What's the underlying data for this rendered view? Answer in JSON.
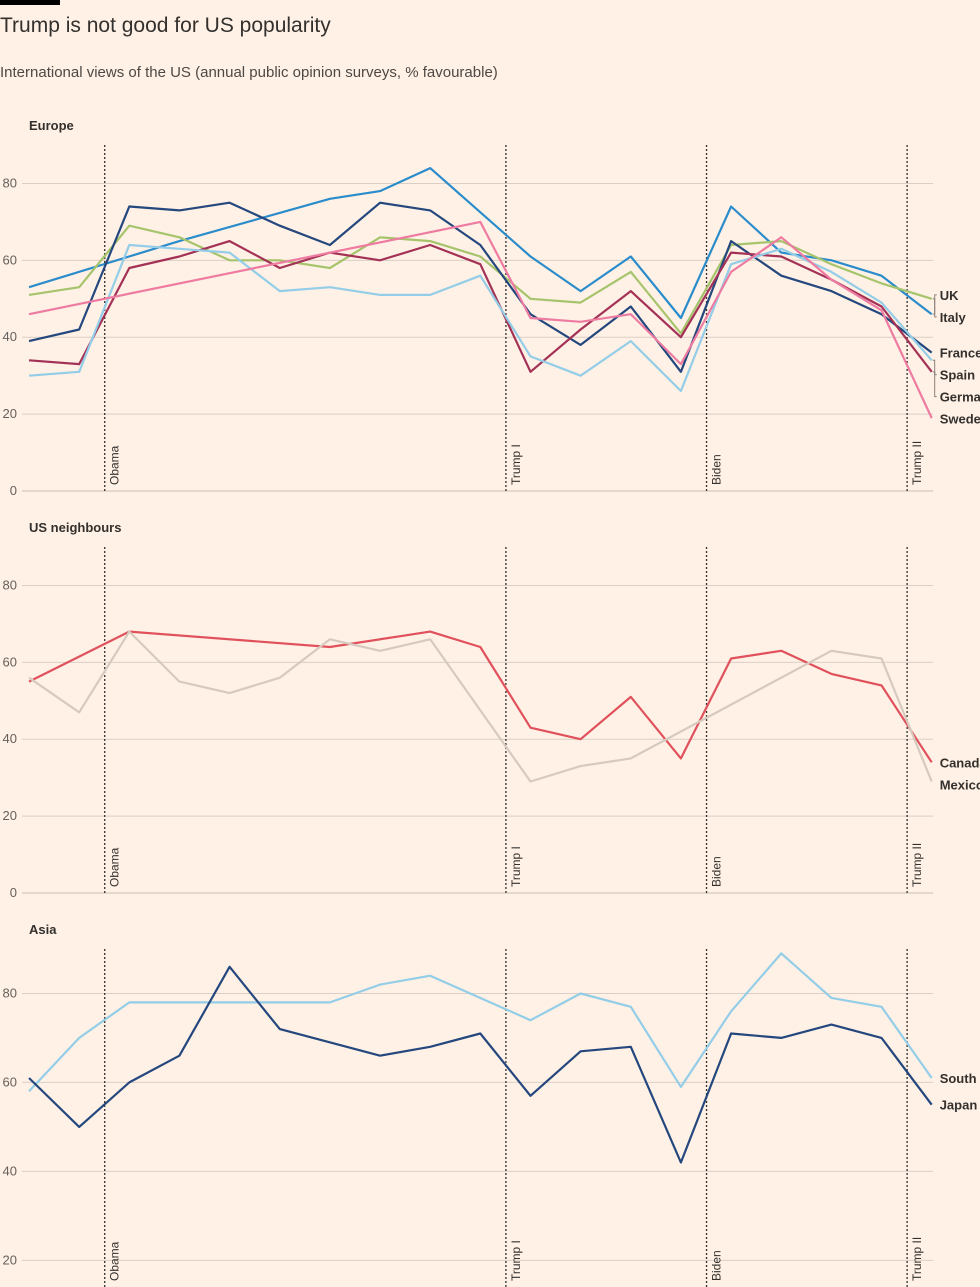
{
  "title": "Trump is not good for US popularity",
  "subtitle": "International views of the US (annual public opinion surveys, % favourable)",
  "colors": {
    "background": "#fff1e5",
    "uk": "#2b8ccc",
    "italy": "#a6c46c",
    "france": "#24477e",
    "germany": "#a33256",
    "spain": "#93cde8",
    "sweden": "#ee7ba1",
    "canada": "#e0515c",
    "mexico": "#d6cac0",
    "south_korea": "#93cde8",
    "japan": "#24477e"
  },
  "chart_data": [
    {
      "type": "line",
      "title": "Europe",
      "ylim": [
        0,
        90
      ],
      "yticks": [
        0,
        20,
        40,
        60,
        80
      ],
      "xlim": [
        0,
        18.3
      ],
      "eras": [
        {
          "label": "Obama",
          "x": 1.5
        },
        {
          "label": "Trump I",
          "x": 9.5
        },
        {
          "label": "Biden",
          "x": 13.5
        },
        {
          "label": "Trump II",
          "x": 17.5
        }
      ],
      "series": [
        {
          "name": "UK",
          "color": "#2b8ccc",
          "label_y": 51,
          "points": [
            [
              0,
              53
            ],
            [
              3,
              65
            ],
            [
              6,
              76
            ],
            [
              7,
              78
            ],
            [
              8,
              84
            ],
            [
              10,
              61
            ],
            [
              11,
              52
            ],
            [
              12,
              61
            ],
            [
              13,
              45
            ],
            [
              14,
              74
            ],
            [
              15,
              62
            ],
            [
              16,
              60
            ],
            [
              17,
              56
            ],
            [
              18,
              46
            ]
          ]
        },
        {
          "name": "Italy",
          "color": "#a6c46c",
          "points": [
            [
              0,
              51
            ],
            [
              1,
              53
            ],
            [
              2,
              69
            ],
            [
              3,
              66
            ],
            [
              4,
              60
            ],
            [
              5,
              60
            ],
            [
              6,
              58
            ],
            [
              7,
              66
            ],
            [
              8,
              65
            ],
            [
              9,
              61
            ],
            [
              10,
              50
            ],
            [
              11,
              49
            ],
            [
              12,
              57
            ],
            [
              13,
              41
            ],
            [
              14,
              64
            ],
            [
              15,
              65
            ],
            [
              16,
              59
            ],
            [
              17,
              54
            ],
            [
              18,
              50
            ]
          ]
        },
        {
          "name": "France",
          "color": "#24477e",
          "points": [
            [
              0,
              39
            ],
            [
              1,
              42
            ],
            [
              2,
              74
            ],
            [
              3,
              73
            ],
            [
              4,
              75
            ],
            [
              5,
              69
            ],
            [
              6,
              64
            ],
            [
              7,
              75
            ],
            [
              8,
              73
            ],
            [
              9,
              64
            ],
            [
              10,
              46
            ],
            [
              11,
              38
            ],
            [
              12,
              48
            ],
            [
              13,
              31
            ],
            [
              14,
              65
            ],
            [
              15,
              56
            ],
            [
              16,
              52
            ],
            [
              17,
              46
            ],
            [
              18,
              36
            ]
          ]
        },
        {
          "name": "Germany",
          "color": "#a33256",
          "points": [
            [
              0,
              34
            ],
            [
              1,
              33
            ],
            [
              2,
              58
            ],
            [
              3,
              61
            ],
            [
              4,
              65
            ],
            [
              5,
              58
            ],
            [
              6,
              62
            ],
            [
              7,
              60
            ],
            [
              8,
              64
            ],
            [
              9,
              59
            ],
            [
              10,
              31
            ],
            [
              11,
              42
            ],
            [
              12,
              52
            ],
            [
              13,
              40
            ],
            [
              14,
              62
            ],
            [
              15,
              61
            ],
            [
              16,
              55
            ],
            [
              17,
              48
            ],
            [
              18,
              31
            ]
          ]
        },
        {
          "name": "Spain",
          "color": "#93cde8",
          "points": [
            [
              0,
              30
            ],
            [
              1,
              31
            ],
            [
              2,
              64
            ],
            [
              3,
              63
            ],
            [
              4,
              62
            ],
            [
              5,
              52
            ],
            [
              6,
              53
            ],
            [
              7,
              51
            ],
            [
              8,
              51
            ],
            [
              9,
              56
            ],
            [
              10,
              35
            ],
            [
              11,
              30
            ],
            [
              12,
              39
            ],
            [
              13,
              26
            ],
            [
              14,
              59
            ],
            [
              15,
              63
            ],
            [
              16,
              57
            ],
            [
              17,
              49
            ],
            [
              18,
              34
            ]
          ]
        },
        {
          "name": "Sweden",
          "color": "#ee7ba1",
          "points": [
            [
              0,
              46
            ],
            [
              9,
              70
            ],
            [
              10,
              45
            ],
            [
              11,
              44
            ],
            [
              12,
              46
            ],
            [
              13,
              33
            ],
            [
              14,
              57
            ],
            [
              15,
              66
            ],
            [
              16,
              55
            ],
            [
              17,
              47
            ],
            [
              18,
              19
            ]
          ]
        }
      ]
    },
    {
      "type": "line",
      "title": "US neighbours",
      "ylim": [
        0,
        90
      ],
      "yticks": [
        0,
        20,
        40,
        60,
        80
      ],
      "xlim": [
        0,
        18.3
      ],
      "eras": [
        {
          "label": "Obama",
          "x": 1.5
        },
        {
          "label": "Trump I",
          "x": 9.5
        },
        {
          "label": "Biden",
          "x": 13.5
        },
        {
          "label": "Trump II",
          "x": 17.5
        }
      ],
      "series": [
        {
          "name": "Canada",
          "color": "#e0515c",
          "points": [
            [
              0,
              55
            ],
            [
              2,
              68
            ],
            [
              6,
              64
            ],
            [
              8,
              68
            ],
            [
              9,
              64
            ],
            [
              10,
              43
            ],
            [
              11,
              40
            ],
            [
              12,
              51
            ],
            [
              13,
              35
            ],
            [
              14,
              61
            ],
            [
              15,
              63
            ],
            [
              16,
              57
            ],
            [
              17,
              54
            ],
            [
              18,
              34
            ]
          ]
        },
        {
          "name": "Mexico",
          "color": "#d6cac0",
          "points": [
            [
              0,
              56
            ],
            [
              1,
              47
            ],
            [
              2,
              68
            ],
            [
              3,
              55
            ],
            [
              4,
              52
            ],
            [
              5,
              56
            ],
            [
              6,
              66
            ],
            [
              7,
              63
            ],
            [
              8,
              66
            ],
            [
              10,
              29
            ],
            [
              11,
              33
            ],
            [
              12,
              35
            ],
            [
              16,
              63
            ],
            [
              17,
              61
            ],
            [
              18,
              29
            ]
          ]
        }
      ]
    },
    {
      "type": "line",
      "title": "Asia",
      "ylim": [
        14,
        90
      ],
      "yticks": [
        20,
        40,
        60,
        80
      ],
      "xlim": [
        0,
        18.3
      ],
      "eras": [
        {
          "label": "Obama",
          "x": 1.5
        },
        {
          "label": "Trump I",
          "x": 9.5
        },
        {
          "label": "Biden",
          "x": 13.5
        },
        {
          "label": "Trump II",
          "x": 17.5
        }
      ],
      "series": [
        {
          "name": "South Korea",
          "color": "#93cde8",
          "points": [
            [
              0,
              58
            ],
            [
              1,
              70
            ],
            [
              2,
              78
            ],
            [
              6,
              78
            ],
            [
              7,
              82
            ],
            [
              8,
              84
            ],
            [
              10,
              74
            ],
            [
              11,
              80
            ],
            [
              12,
              77
            ],
            [
              13,
              59
            ],
            [
              14,
              76
            ],
            [
              15,
              89
            ],
            [
              16,
              79
            ],
            [
              17,
              77
            ],
            [
              18,
              61
            ]
          ]
        },
        {
          "name": "Japan",
          "color": "#24477e",
          "points": [
            [
              0,
              61
            ],
            [
              1,
              50
            ],
            [
              2,
              60
            ],
            [
              3,
              66
            ],
            [
              4,
              86
            ],
            [
              5,
              72
            ],
            [
              7,
              66
            ],
            [
              8,
              68
            ],
            [
              9,
              71
            ],
            [
              10,
              57
            ],
            [
              11,
              67
            ],
            [
              12,
              68
            ],
            [
              13,
              42
            ],
            [
              14,
              71
            ],
            [
              15,
              70
            ],
            [
              16,
              73
            ],
            [
              17,
              70
            ],
            [
              18,
              55
            ]
          ]
        }
      ]
    }
  ]
}
